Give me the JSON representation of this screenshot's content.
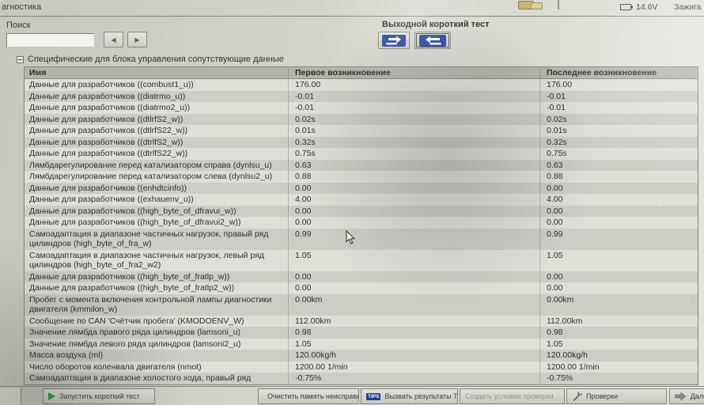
{
  "window": {
    "title_partial": "агностика",
    "battery_voltage": "14.6V",
    "ignition_partial": "Зажига"
  },
  "search": {
    "label": "Поиск",
    "value": "",
    "prev_glyph": "◀",
    "next_glyph": "▶"
  },
  "output_test": {
    "label": "Выходной короткий тест"
  },
  "section": {
    "title": "Специфические для блока управления сопутствующие данные"
  },
  "table": {
    "columns": [
      "Имя",
      "Первое возникновение",
      "Последнее возникновение"
    ],
    "rows": [
      {
        "name": "Данные для разработчиков ((combust1_u))",
        "first": "176.00",
        "last": "176.00"
      },
      {
        "name": "Данные для разработчиков ((diatrmo_u))",
        "first": "-0.01",
        "last": "-0.01"
      },
      {
        "name": "Данные для разработчиков ((diatrmo2_u))",
        "first": "-0.01",
        "last": "-0.01"
      },
      {
        "name": "Данные для разработчиков ((dtlrfS2_w))",
        "first": "0.02s",
        "last": "0.02s"
      },
      {
        "name": "Данные для разработчиков ((dtlrfS22_w))",
        "first": "0.01s",
        "last": "0.01s"
      },
      {
        "name": "Данные для разработчиков ((dtrlfS2_w))",
        "first": "0.32s",
        "last": "0.32s"
      },
      {
        "name": "Данные для разработчиков ((dtrlfS22_w))",
        "first": "0.75s",
        "last": "0.75s"
      },
      {
        "name": "Лямбдарегулирование перед катализатором справа (dynlsu_u)",
        "first": "0.63",
        "last": "0.63"
      },
      {
        "name": "Лямбдарегулирование перед катализатором слева (dynlsu2_u)",
        "first": "0.88",
        "last": "0.88"
      },
      {
        "name": "Данные для разработчиков ((enhdtcinfo))",
        "first": "0.00",
        "last": "0.00"
      },
      {
        "name": "Данные для разработчиков ((exhauenv_u))",
        "first": "4.00",
        "last": "4.00"
      },
      {
        "name": "Данные для разработчиков ((high_byte_of_dfravui_w))",
        "first": "0.00",
        "last": "0.00"
      },
      {
        "name": "Данные для разработчиков ((high_byte_of_dfravui2_w))",
        "first": "0.00",
        "last": "0.00"
      },
      {
        "name": "Самоадаптация в диапазоне частичных нагрузок, правый ряд цилиндров (high_byte_of_fra_w)",
        "first": "0.99",
        "last": "0.99"
      },
      {
        "name": "Самоадаптация в диапазоне частичных нагрузок, левый ряд цилиндров (high_byte_of_fra2_w2)",
        "first": "1.05",
        "last": "1.05"
      },
      {
        "name": "Данные для разработчиков ((high_byte_of_fratlp_w))",
        "first": "0.00",
        "last": "0.00"
      },
      {
        "name": "Данные для разработчиков ((high_byte_of_fratlp2_w))",
        "first": "0.00",
        "last": "0.00"
      },
      {
        "name": "Пробег с момента включения контрольной лампы диагностики двигателя (kmmilon_w)",
        "first": "0.00km",
        "last": "0.00km"
      },
      {
        "name": "Сообщение по CAN 'Счётчик пробега' (KMODOENV_W)",
        "first": "112.00km",
        "last": "112.00km"
      },
      {
        "name": "Значение лямбда правого ряда цилиндров (lamsoni_u)",
        "first": "0.98",
        "last": "0.98"
      },
      {
        "name": "Значение лямбда левого ряда цилиндров (lamsoni2_u)",
        "first": "1.05",
        "last": "1.05"
      },
      {
        "name": "Масса воздуха (ml)",
        "first": "120.00kg/h",
        "last": "120.00kg/h"
      },
      {
        "name": "Число оборотов коленвала двигателя (nmot)",
        "first": "1200.00 1/min",
        "last": "1200.00 1/min"
      },
      {
        "name": "Самоадаптация в диапазоне холостого хода, правый ряд",
        "first": "-0.75%",
        "last": "-0.75%"
      }
    ]
  },
  "toolbar": {
    "buttons": [
      {
        "label": "Запустить короткий тест",
        "icon": "play-icon",
        "enabled": true
      },
      {
        "label": "Очистить память неисправностей",
        "icon": "eraser-icon",
        "enabled": true
      },
      {
        "label": "Вызвать результаты TIPS",
        "icon": "tips-badge",
        "tips_label": "TIPS",
        "enabled": true
      },
      {
        "label": "Создать условия проверки",
        "icon": null,
        "enabled": false
      },
      {
        "label": "Проверки",
        "icon": "wrench-icon",
        "enabled": true
      },
      {
        "label": "Далее",
        "icon": "arrow-right-icon",
        "enabled": true
      }
    ]
  },
  "colors": {
    "accent_blue": "#1d3f96",
    "play_green": "#2f9e31",
    "row_light": "#dee0d8",
    "row_dark": "#cbcec5",
    "header_gray": "#b2b5ab"
  }
}
